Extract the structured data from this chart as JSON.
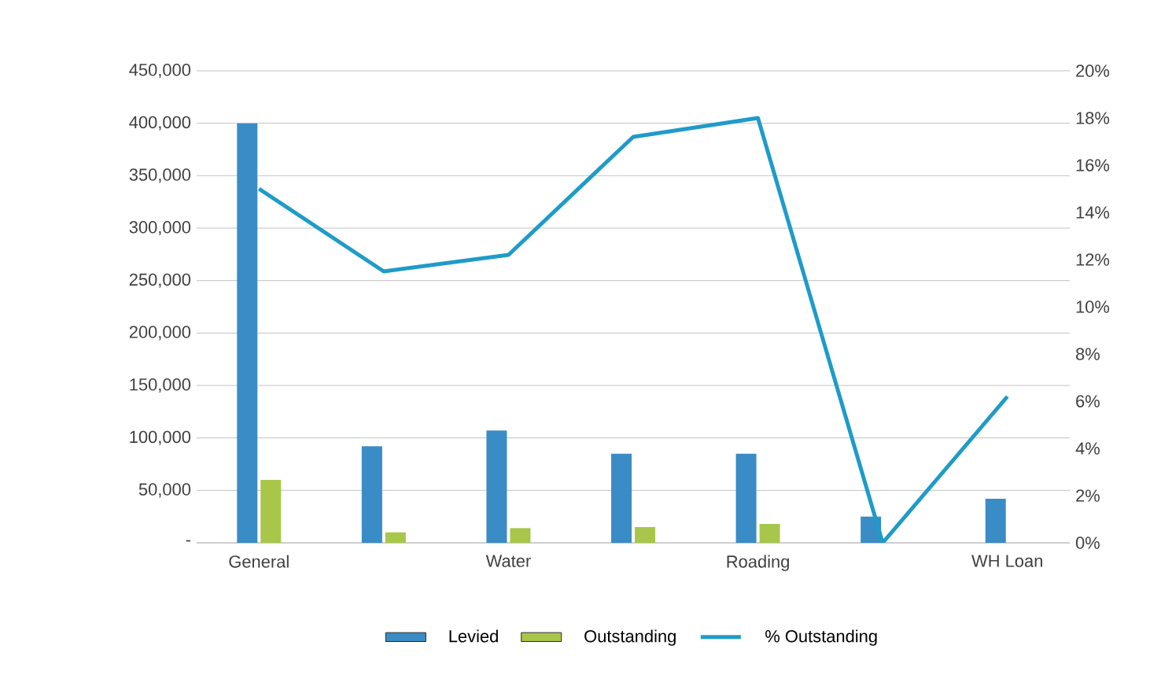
{
  "chart_data": {
    "type": "bar",
    "categories": [
      "General",
      null,
      "Water",
      null,
      "Roading",
      null,
      "WH Loan"
    ],
    "series": [
      {
        "name": "Levied",
        "color": "#3a8cc6",
        "values": [
          400000,
          92000,
          107000,
          85000,
          85000,
          25000,
          42000
        ]
      },
      {
        "name": "Outstanding",
        "color": "#a8c64a",
        "values": [
          60000,
          10000,
          14000,
          15000,
          18000,
          0,
          0
        ]
      },
      {
        "name": "% Outstanding",
        "type": "line",
        "axis": "y2",
        "color": "#1f9bc8",
        "values": [
          15,
          11.5,
          12.2,
          17.2,
          18,
          0,
          6.2
        ]
      }
    ],
    "ylim": [
      0,
      450000
    ],
    "yticks": [
      {
        "value": 0,
        "label": "-"
      },
      {
        "value": 50000,
        "label": "50,000"
      },
      {
        "value": 100000,
        "label": "100,000"
      },
      {
        "value": 150000,
        "label": "150,000"
      },
      {
        "value": 200000,
        "label": "200,000"
      },
      {
        "value": 250000,
        "label": "250,000"
      },
      {
        "value": 300000,
        "label": "300,000"
      },
      {
        "value": 350000,
        "label": "350,000"
      },
      {
        "value": 400000,
        "label": "400,000"
      },
      {
        "value": 450000,
        "label": "450,000"
      }
    ],
    "y2lim": [
      0,
      20
    ],
    "y2ticks": [
      {
        "value": 0,
        "label": "0%"
      },
      {
        "value": 2,
        "label": "2%"
      },
      {
        "value": 4,
        "label": "4%"
      },
      {
        "value": 6,
        "label": "6%"
      },
      {
        "value": 8,
        "label": "8%"
      },
      {
        "value": 10,
        "label": "10%"
      },
      {
        "value": 12,
        "label": "12%"
      },
      {
        "value": 14,
        "label": "14%"
      },
      {
        "value": 16,
        "label": "16%"
      },
      {
        "value": 18,
        "label": "18%"
      },
      {
        "value": 20,
        "label": "20%"
      }
    ],
    "grid": "y",
    "legend": "bottom"
  }
}
